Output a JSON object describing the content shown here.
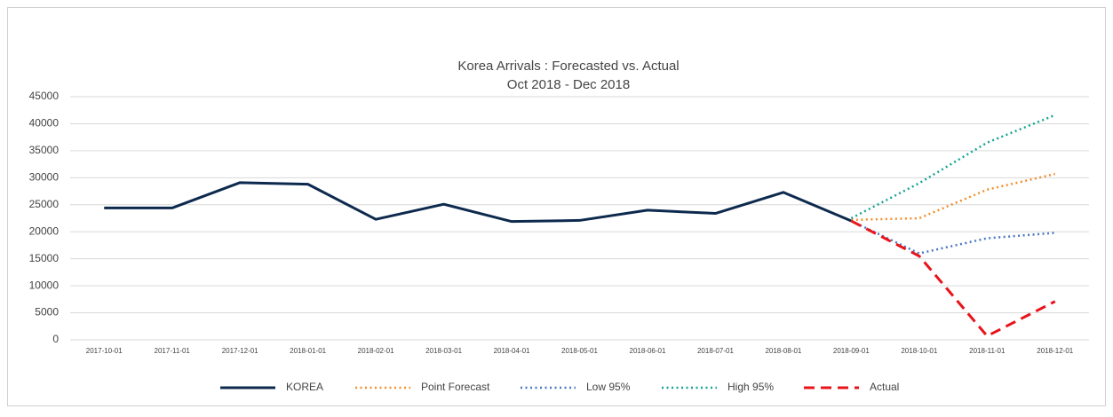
{
  "chart_data": {
    "type": "line",
    "title": "Korea Arrivals : Forecasted vs. Actual",
    "subtitle": "Oct 2018 - Dec 2018",
    "categories": [
      "2017-10-01",
      "2017-11-01",
      "2017-12-01",
      "2018-01-01",
      "2018-02-01",
      "2018-03-01",
      "2018-04-01",
      "2018-05-01",
      "2018-06-01",
      "2018-07-01",
      "2018-08-01",
      "2018-09-01",
      "2018-10-01",
      "2018-11-01",
      "2018-12-01"
    ],
    "series": [
      {
        "name": "KOREA",
        "color": "#0d2a4e",
        "style": "solid",
        "values": [
          24400,
          24400,
          29100,
          28800,
          22300,
          25100,
          21900,
          22100,
          24000,
          23400,
          27300,
          22000,
          null,
          null,
          null
        ]
      },
      {
        "name": "Point Forecast",
        "color": "#f28e2b",
        "style": "dotted",
        "values": [
          null,
          null,
          null,
          null,
          null,
          null,
          null,
          null,
          null,
          null,
          null,
          22200,
          22500,
          27800,
          30700
        ]
      },
      {
        "name": "Low 95%",
        "color": "#4a78c2",
        "style": "dotted",
        "values": [
          null,
          null,
          null,
          null,
          null,
          null,
          null,
          null,
          null,
          null,
          null,
          22000,
          16000,
          18800,
          19800
        ]
      },
      {
        "name": "High 95%",
        "color": "#16a394",
        "style": "dotted",
        "values": [
          null,
          null,
          null,
          null,
          null,
          null,
          null,
          null,
          null,
          null,
          null,
          22500,
          29000,
          36500,
          41600
        ]
      },
      {
        "name": "Actual",
        "color": "#e8141a",
        "style": "dashed",
        "values": [
          null,
          null,
          null,
          null,
          null,
          null,
          null,
          null,
          null,
          null,
          null,
          22000,
          15500,
          700,
          7100
        ]
      }
    ],
    "ylim": [
      0,
      45000
    ],
    "yticks": [
      0,
      5000,
      10000,
      15000,
      20000,
      25000,
      30000,
      35000,
      40000,
      45000
    ],
    "grid": true,
    "legend": "bottom"
  }
}
